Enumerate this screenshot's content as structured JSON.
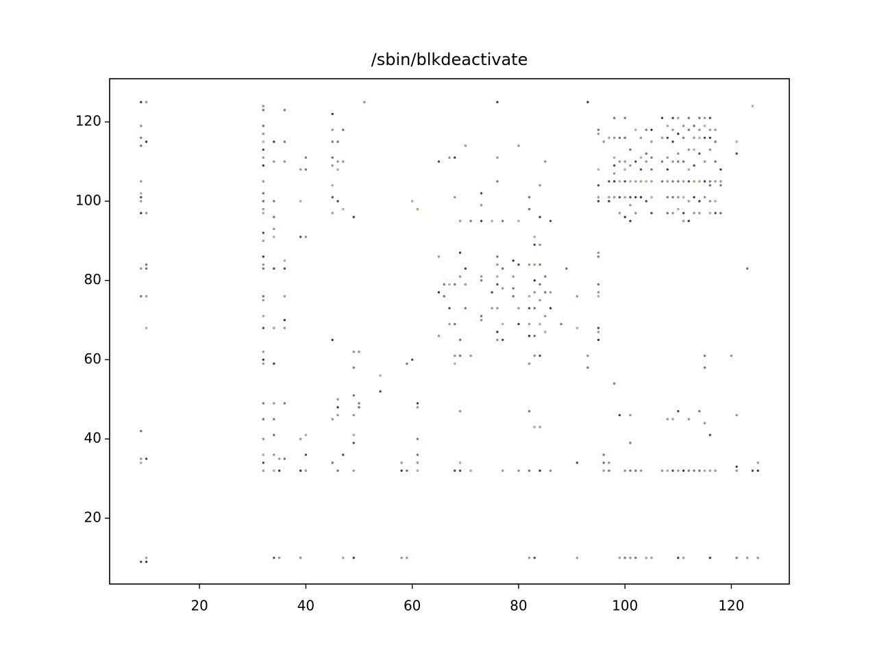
{
  "chart_data": {
    "type": "scatter",
    "title": "/sbin/blkdeactivate",
    "xlim": [
      3.1,
      130.9
    ],
    "ylim": [
      3.4,
      130.9
    ],
    "xticks": [
      20,
      40,
      60,
      80,
      100,
      120
    ],
    "yticks": [
      20,
      40,
      60,
      80,
      100,
      120
    ],
    "grid": false,
    "colors": [
      "#333344",
      "#9a9a9a",
      "#6a7fa0",
      "#8a6a7a",
      "#7fae8f",
      "#b4b4b4",
      "#444466",
      "#a8a870"
    ],
    "columns": [
      {
        "x": 9,
        "y": [
          125,
          119,
          116,
          114,
          105,
          102,
          101,
          100,
          97,
          83,
          76,
          42,
          35,
          34,
          9
        ]
      },
      {
        "x": 10,
        "y": [
          125,
          115,
          97,
          84,
          83,
          76,
          68,
          35,
          10,
          9
        ]
      },
      {
        "x": 32,
        "y": [
          124,
          123,
          119,
          117,
          115,
          113,
          111,
          109,
          105,
          102,
          100,
          98,
          97,
          92,
          90,
          86,
          84,
          83,
          76,
          75,
          71,
          68,
          62,
          60,
          59,
          49,
          45,
          40,
          36,
          34,
          32
        ]
      },
      {
        "x": 34,
        "y": [
          115,
          110,
          100,
          96,
          93,
          91,
          83,
          68,
          59,
          49,
          45,
          41,
          36,
          32,
          10
        ]
      },
      {
        "x": 35,
        "y": [
          35,
          32,
          10
        ]
      },
      {
        "x": 36,
        "y": [
          123,
          115,
          110,
          85,
          83,
          76,
          70,
          68,
          49,
          35
        ]
      },
      {
        "x": 39,
        "y": [
          108,
          100,
          91,
          40,
          32,
          10
        ]
      },
      {
        "x": 40,
        "y": [
          111,
          108,
          91,
          41,
          36,
          32
        ]
      },
      {
        "x": 45,
        "y": [
          122,
          118,
          115,
          111,
          109,
          104,
          101,
          97,
          65,
          45,
          34
        ]
      },
      {
        "x": 46,
        "y": [
          115,
          110,
          108,
          100,
          50,
          48,
          46,
          32
        ]
      },
      {
        "x": 47,
        "y": [
          118,
          110,
          98,
          36,
          10
        ]
      },
      {
        "x": 49,
        "y": [
          96,
          62,
          58,
          51,
          46,
          41,
          39,
          32,
          10
        ]
      },
      {
        "x": 50,
        "y": [
          62,
          49,
          48
        ]
      },
      {
        "x": 51,
        "y": [
          125
        ]
      },
      {
        "x": 54,
        "y": [
          56,
          52
        ]
      },
      {
        "x": 58,
        "y": [
          34,
          32,
          10
        ]
      },
      {
        "x": 59,
        "y": [
          59,
          32,
          10
        ]
      },
      {
        "x": 60,
        "y": [
          100,
          60
        ]
      },
      {
        "x": 61,
        "y": [
          98,
          49,
          48,
          40,
          36,
          34,
          32
        ]
      },
      {
        "x": 65,
        "y": [
          110,
          86,
          77,
          66
        ]
      },
      {
        "x": 66,
        "y": [
          79,
          76
        ]
      },
      {
        "x": 67,
        "y": [
          111,
          79,
          73,
          69
        ]
      },
      {
        "x": 68,
        "y": [
          111,
          101,
          79,
          69,
          61,
          59,
          32
        ]
      },
      {
        "x": 69,
        "y": [
          95,
          87,
          81,
          65,
          61,
          47,
          34,
          32
        ]
      },
      {
        "x": 70,
        "y": [
          114,
          83,
          79,
          73
        ]
      },
      {
        "x": 71,
        "y": [
          95,
          61,
          32
        ]
      },
      {
        "x": 73,
        "y": [
          102,
          99,
          95,
          81,
          80,
          71,
          70
        ]
      },
      {
        "x": 75,
        "y": [
          95,
          77,
          73
        ]
      },
      {
        "x": 76,
        "y": [
          125,
          111,
          105,
          86,
          84,
          81,
          79,
          73,
          67,
          65
        ]
      },
      {
        "x": 77,
        "y": [
          95,
          83,
          78,
          69,
          65,
          32
        ]
      },
      {
        "x": 79,
        "y": [
          85,
          81,
          78,
          76
        ]
      },
      {
        "x": 80,
        "y": [
          114,
          95,
          84,
          73,
          69,
          32
        ]
      },
      {
        "x": 82,
        "y": [
          101,
          98,
          84,
          76,
          73,
          69,
          66,
          59,
          47,
          32,
          10
        ]
      },
      {
        "x": 83,
        "y": [
          91,
          89,
          84,
          80,
          77,
          73,
          66,
          61,
          43,
          10
        ]
      },
      {
        "x": 84,
        "y": [
          104,
          96,
          89,
          84,
          79,
          75,
          69,
          61,
          43,
          32
        ]
      },
      {
        "x": 85,
        "y": [
          110,
          81,
          77,
          71,
          67
        ]
      },
      {
        "x": 86,
        "y": [
          95,
          77,
          73,
          32
        ]
      },
      {
        "x": 88,
        "y": [
          69
        ]
      },
      {
        "x": 89,
        "y": [
          83
        ]
      },
      {
        "x": 91,
        "y": [
          76,
          68,
          34,
          10
        ]
      },
      {
        "x": 93,
        "y": [
          125,
          61,
          58
        ]
      },
      {
        "x": 95,
        "y": [
          118,
          117,
          108,
          104,
          101,
          100,
          87,
          86,
          79,
          77,
          76,
          68,
          67,
          65
        ]
      },
      {
        "x": 96,
        "y": [
          115,
          36,
          34,
          32
        ]
      },
      {
        "x": 97,
        "y": [
          116,
          105,
          101,
          100,
          34,
          32
        ]
      },
      {
        "x": 98,
        "y": [
          121,
          116,
          111,
          109,
          107,
          105,
          101,
          54
        ]
      },
      {
        "x": 99,
        "y": [
          116,
          110,
          105,
          101,
          97,
          46,
          10
        ]
      },
      {
        "x": 100,
        "y": [
          121,
          116,
          110,
          108,
          105,
          101,
          96,
          32,
          10
        ]
      },
      {
        "x": 101,
        "y": [
          113,
          109,
          105,
          101,
          99,
          95,
          46,
          39,
          32,
          10
        ]
      },
      {
        "x": 102,
        "y": [
          118,
          110,
          105,
          101,
          97,
          32,
          10
        ]
      },
      {
        "x": 103,
        "y": [
          116,
          111,
          108,
          105,
          101,
          32
        ]
      },
      {
        "x": 104,
        "y": [
          118,
          112,
          110,
          105,
          100,
          10
        ]
      },
      {
        "x": 105,
        "y": [
          118,
          115,
          111,
          108,
          105,
          101,
          97,
          10
        ]
      },
      {
        "x": 107,
        "y": [
          121,
          116,
          110,
          105,
          32
        ]
      },
      {
        "x": 108,
        "y": [
          119,
          116,
          111,
          108,
          105,
          101,
          97,
          45,
          32
        ]
      },
      {
        "x": 109,
        "y": [
          121,
          118,
          115,
          110,
          105,
          101,
          97,
          45,
          32
        ]
      },
      {
        "x": 110,
        "y": [
          121,
          117,
          112,
          110,
          105,
          101,
          98,
          47,
          32,
          10
        ]
      },
      {
        "x": 111,
        "y": [
          119,
          116,
          110,
          105,
          101,
          97,
          95,
          32,
          10
        ]
      },
      {
        "x": 112,
        "y": [
          121,
          118,
          113,
          108,
          105,
          100,
          95,
          45,
          32
        ]
      },
      {
        "x": 113,
        "y": [
          119,
          116,
          113,
          109,
          105,
          101,
          97,
          32
        ]
      },
      {
        "x": 114,
        "y": [
          121,
          118,
          116,
          112,
          105,
          100,
          97,
          47,
          32
        ]
      },
      {
        "x": 115,
        "y": [
          121,
          119,
          116,
          110,
          105,
          101,
          61,
          58,
          44,
          32
        ]
      },
      {
        "x": 116,
        "y": [
          121,
          118,
          116,
          113,
          105,
          104,
          100,
          97,
          41,
          32,
          10
        ]
      },
      {
        "x": 117,
        "y": [
          118,
          115,
          110,
          105,
          100,
          97,
          32
        ]
      },
      {
        "x": 118,
        "y": [
          108,
          105,
          104,
          97
        ]
      },
      {
        "x": 120,
        "y": [
          61
        ]
      },
      {
        "x": 121,
        "y": [
          115,
          112,
          46,
          33,
          32,
          10
        ]
      },
      {
        "x": 123,
        "y": [
          83,
          10
        ]
      },
      {
        "x": 124,
        "y": [
          124,
          32
        ]
      },
      {
        "x": 125,
        "y": [
          34,
          32,
          10
        ]
      }
    ]
  }
}
